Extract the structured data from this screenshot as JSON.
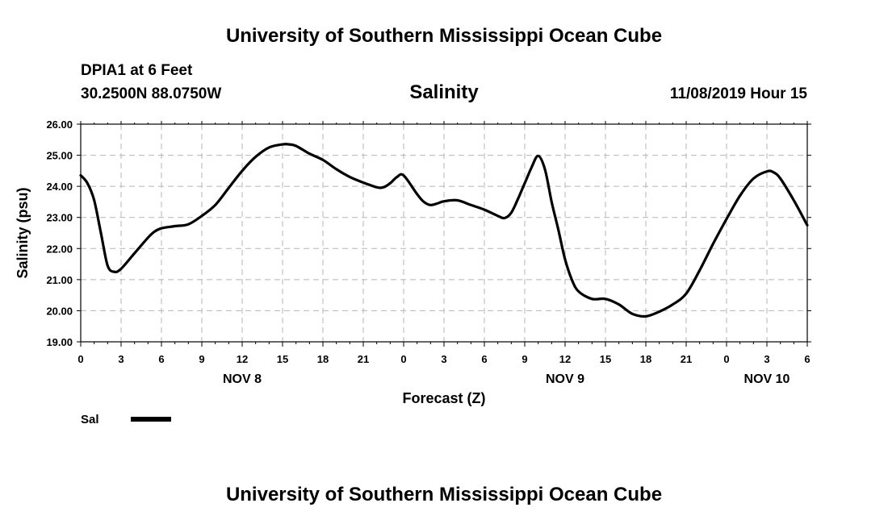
{
  "header": {
    "top_title": "University of Southern Mississippi Ocean Cube",
    "station": "DPIA1 at 6 Feet",
    "coordinates": "30.2500N 88.0750W",
    "variable": "Salinity",
    "datetime": "11/08/2019 Hour 15",
    "bottom_title": "University of Southern Mississippi Ocean Cube"
  },
  "chart_data": {
    "type": "line",
    "title": "Salinity",
    "xlabel": "Forecast (Z)",
    "ylabel": "Salinity (psu)",
    "xlim": [
      0,
      54
    ],
    "ylim": [
      19,
      26
    ],
    "yticks": [
      19,
      20,
      21,
      22,
      23,
      24,
      25,
      26
    ],
    "ytick_labels": [
      "19.00",
      "20.00",
      "21.00",
      "22.00",
      "23.00",
      "24.00",
      "25.00",
      "26.00"
    ],
    "xticks": [
      0,
      3,
      6,
      9,
      12,
      15,
      18,
      21,
      24,
      27,
      30,
      33,
      36,
      39,
      42,
      45,
      48,
      51,
      54
    ],
    "xtick_labels": [
      "0",
      "3",
      "6",
      "9",
      "12",
      "15",
      "18",
      "21",
      "0",
      "3",
      "6",
      "9",
      "12",
      "15",
      "18",
      "21",
      "0",
      "3",
      "6"
    ],
    "date_labels": [
      {
        "x": 12,
        "label": "NOV 8"
      },
      {
        "x": 36,
        "label": "NOV 9"
      },
      {
        "x": 51,
        "label": "NOV 10"
      }
    ],
    "grid": true,
    "legend_position": "bottom-left",
    "series": [
      {
        "name": "Sal",
        "color": "#000000",
        "x": [
          0,
          0.5,
          1,
          1.5,
          2,
          2.5,
          3,
          4,
          5,
          5.5,
          6,
          7,
          8,
          9,
          10,
          11,
          12,
          13,
          14,
          15,
          15.5,
          16,
          17,
          18,
          19,
          20,
          21,
          22,
          22.5,
          23,
          23.5,
          24,
          25,
          25.5,
          26,
          26.5,
          27,
          28,
          29,
          30,
          31,
          31.5,
          32,
          32.5,
          33,
          33.5,
          34,
          34.5,
          35,
          35.5,
          36,
          36.5,
          37,
          38,
          39,
          40,
          41,
          42,
          43,
          44,
          45,
          46,
          47,
          48,
          49,
          50,
          51,
          51.5,
          52,
          53,
          54
        ],
        "values": [
          24.35,
          24.1,
          23.55,
          22.5,
          21.45,
          21.25,
          21.35,
          21.85,
          22.35,
          22.55,
          22.65,
          22.72,
          22.78,
          23.05,
          23.4,
          23.95,
          24.5,
          24.95,
          25.25,
          25.35,
          25.35,
          25.3,
          25.05,
          24.85,
          24.55,
          24.3,
          24.12,
          23.97,
          23.97,
          24.1,
          24.3,
          24.35,
          23.75,
          23.5,
          23.4,
          23.45,
          23.52,
          23.55,
          23.4,
          23.25,
          23.05,
          22.98,
          23.15,
          23.6,
          24.1,
          24.6,
          24.98,
          24.55,
          23.5,
          22.6,
          21.65,
          21.0,
          20.62,
          20.38,
          20.38,
          20.2,
          19.9,
          19.82,
          19.97,
          20.2,
          20.55,
          21.3,
          22.15,
          22.95,
          23.7,
          24.25,
          24.48,
          24.45,
          24.25,
          23.55,
          22.75
        ]
      }
    ]
  }
}
